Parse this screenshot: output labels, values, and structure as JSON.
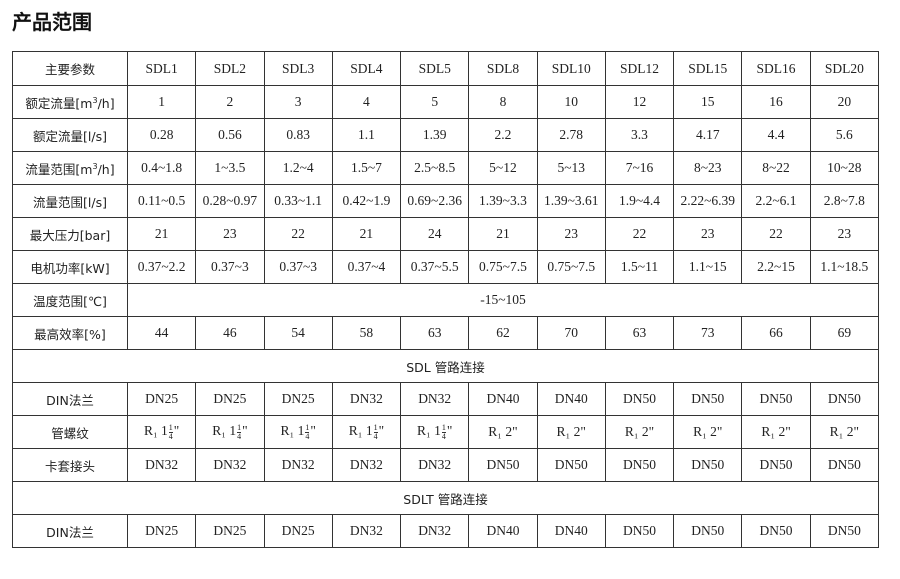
{
  "title": "产品范围",
  "table": {
    "header_label": "主要参数",
    "models": [
      "SDL1",
      "SDL2",
      "SDL3",
      "SDL4",
      "SDL5",
      "SDL8",
      "SDL10",
      "SDL12",
      "SDL15",
      "SDL16",
      "SDL20"
    ],
    "rows": [
      {
        "label_pre": "额定流量[m",
        "label_sup": "3",
        "label_post": "/h]",
        "values": [
          "1",
          "2",
          "3",
          "4",
          "5",
          "8",
          "10",
          "12",
          "15",
          "16",
          "20"
        ]
      },
      {
        "label": "额定流量[l/s]",
        "values": [
          "0.28",
          "0.56",
          "0.83",
          "1.1",
          "1.39",
          "2.2",
          "2.78",
          "3.3",
          "4.17",
          "4.4",
          "5.6"
        ]
      },
      {
        "label_pre": "流量范围[m",
        "label_sup": "3",
        "label_post": "/h]",
        "values": [
          "0.4~1.8",
          "1~3.5",
          "1.2~4",
          "1.5~7",
          "2.5~8.5",
          "5~12",
          "5~13",
          "7~16",
          "8~23",
          "8~22",
          "10~28"
        ]
      },
      {
        "label": "流量范围[l/s]",
        "values": [
          "0.11~0.5",
          "0.28~0.97",
          "0.33~1.1",
          "0.42~1.9",
          "0.69~2.36",
          "1.39~3.3",
          "1.39~3.61",
          "1.9~4.4",
          "2.22~6.39",
          "2.2~6.1",
          "2.8~7.8"
        ]
      },
      {
        "label": "最大压力[bar]",
        "values": [
          "21",
          "23",
          "22",
          "21",
          "24",
          "21",
          "23",
          "22",
          "23",
          "22",
          "23"
        ]
      },
      {
        "label": "电机功率[kW]",
        "values": [
          "0.37~2.2",
          "0.37~3",
          "0.37~3",
          "0.37~4",
          "0.37~5.5",
          "0.75~7.5",
          "0.75~7.5",
          "1.5~11",
          "1.1~15",
          "2.2~15",
          "1.1~18.5"
        ]
      }
    ],
    "temp_row": {
      "label": "温度范围[℃]",
      "value": "-15~105"
    },
    "eff_row": {
      "label": "最高效率[%]",
      "values": [
        "44",
        "46",
        "54",
        "58",
        "63",
        "62",
        "70",
        "63",
        "73",
        "66",
        "69"
      ]
    },
    "sdl_section": {
      "title": "SDL 管路连接",
      "din_label": "DIN法兰",
      "din": [
        "DN25",
        "DN25",
        "DN25",
        "DN32",
        "DN32",
        "DN40",
        "DN40",
        "DN50",
        "DN50",
        "DN50",
        "DN50"
      ],
      "thread_label": "管螺纹",
      "thread": [
        {
          "r": "R₁",
          "whole": "1",
          "num": "1",
          "den": "4",
          "q": "\""
        },
        {
          "r": "R₁",
          "whole": "1",
          "num": "1",
          "den": "4",
          "q": "\""
        },
        {
          "r": "R₁",
          "whole": "1",
          "num": "1",
          "den": "4",
          "q": "\""
        },
        {
          "r": "R₁",
          "whole": "1",
          "num": "1",
          "den": "4",
          "q": "\""
        },
        {
          "r": "R₁",
          "whole": "1",
          "num": "1",
          "den": "4",
          "q": "\""
        },
        {
          "r": "R₁",
          "whole": "2",
          "q": "\""
        },
        {
          "r": "R₁",
          "whole": "2",
          "q": "\""
        },
        {
          "r": "R₁",
          "whole": "2",
          "q": "\""
        },
        {
          "r": "R₁",
          "whole": "2",
          "q": "\""
        },
        {
          "r": "R₁",
          "whole": "2",
          "q": "\""
        },
        {
          "r": "R₁",
          "whole": "2",
          "q": "\""
        }
      ],
      "clamp_label": "卡套接头",
      "clamp": [
        "DN32",
        "DN32",
        "DN32",
        "DN32",
        "DN32",
        "DN50",
        "DN50",
        "DN50",
        "DN50",
        "DN50",
        "DN50"
      ]
    },
    "sdlt_section": {
      "title": "SDLT 管路连接",
      "din_label": "DIN法兰",
      "din": [
        "DN25",
        "DN25",
        "DN25",
        "DN32",
        "DN32",
        "DN40",
        "DN40",
        "DN50",
        "DN50",
        "DN50",
        "DN50"
      ]
    }
  }
}
